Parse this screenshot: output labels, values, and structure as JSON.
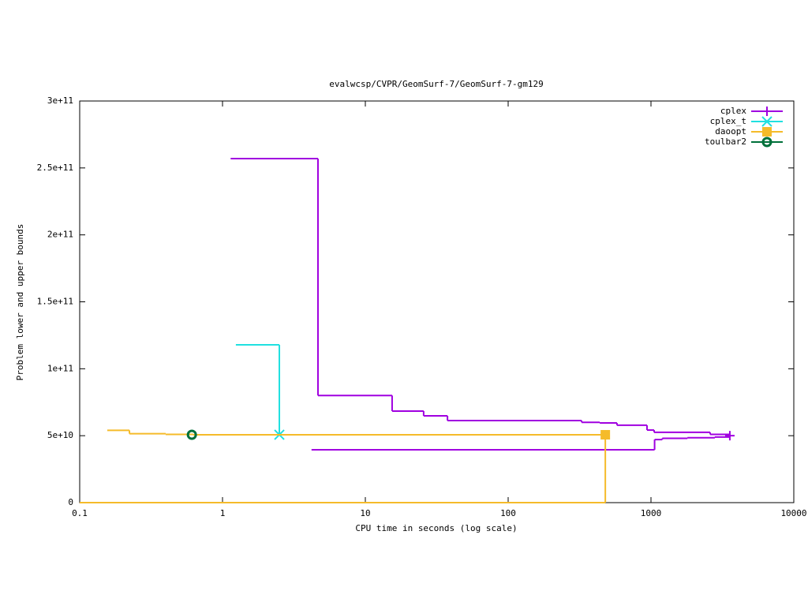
{
  "chart_data": {
    "type": "step",
    "title": "evalwcsp/CVPR/GeomSurf-7/GeomSurf-7-gm129",
    "x_label": "CPU time in seconds (log scale)",
    "y_label": "Problem lower and upper bounds",
    "x_log": true,
    "xlim": [
      0.1,
      10000
    ],
    "xticks": [
      0.1,
      1,
      10,
      100,
      1000,
      10000
    ],
    "ylim": [
      0,
      300000000000
    ],
    "yticks": [
      0,
      {
        "value": 50000000000,
        "label": "5e+10"
      },
      {
        "value": 100000000000,
        "label": "1e+11"
      },
      {
        "value": 150000000000,
        "label": "1.5e+11"
      },
      {
        "value": 200000000000,
        "label": "2e+11"
      },
      {
        "value": 250000000000,
        "label": "2.5e+11"
      },
      {
        "value": 300000000000,
        "label": "3e+11"
      }
    ],
    "legend": "top-right",
    "series": [
      {
        "name": "cplex",
        "color": "#a000e0",
        "marker": "plus",
        "x": [
          1.14,
          4.66,
          15.4,
          25.6,
          37.6,
          327,
          438,
          578,
          938,
          1052,
          2597,
          3566
        ],
        "values": [
          257000000000,
          80000000000,
          68400000000,
          64800000000,
          61300000000,
          60000000000,
          59500000000,
          57800000000,
          54200000000,
          52500000000,
          51000000000,
          50000000000
        ],
        "lower_x": [
          4.2,
          1060,
          1200,
          1800,
          2800,
          3566
        ],
        "lower_values": [
          39500000000,
          47100000000,
          48000000000,
          48500000000,
          49000000000,
          50000000000
        ]
      },
      {
        "name": "cplex_t",
        "color": "#20e0e0",
        "marker": "cross",
        "x": [
          1.24,
          2.5
        ],
        "values": [
          117900000000,
          50700000000
        ]
      },
      {
        "name": "daoopt",
        "color": "#f5bb2a",
        "marker": "square",
        "x": [
          0.156,
          0.223,
          0.4,
          0.625,
          479
        ],
        "values": [
          54000000000,
          51500000000,
          51000000000,
          50700000000,
          50700000000
        ],
        "lower_x": [
          0.1,
          479
        ],
        "lower_values": [
          0,
          50700000000
        ]
      },
      {
        "name": "toulbar2",
        "color": "#00703a",
        "marker": "circle",
        "x": [
          0.61
        ],
        "values": [
          50700000000
        ]
      }
    ]
  }
}
